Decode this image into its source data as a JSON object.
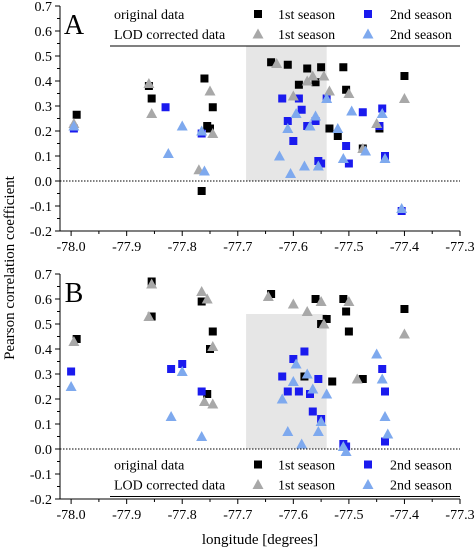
{
  "figure": {
    "ylabel": "Pearson correlation coefficient",
    "xlabel": "longitude [degrees]"
  },
  "colors": {
    "original_1st": "#000000",
    "original_2nd": "#1a1aee",
    "lod_1st": "#a8a8a8",
    "lod_2nd": "#7ea9ee",
    "shade": "#e6e6e6"
  },
  "chart_data": [
    {
      "type": "scatter",
      "panel_label": "A",
      "xlabel": "",
      "ylabel": "Pearson correlation coefficient",
      "xlim": [
        -78.02,
        -77.3
      ],
      "ylim": [
        -0.2,
        0.7
      ],
      "x_ticks": [
        -78.0,
        -77.9,
        -77.8,
        -77.7,
        -77.6,
        -77.5,
        -77.4,
        -77.3
      ],
      "x_tick_labels": [
        "-78.0",
        "-77.9",
        "-77.8",
        "-77.7",
        "-77.6",
        "-77.5",
        "-77.4",
        "-77.3"
      ],
      "y_ticks": [
        -0.2,
        -0.1,
        0.0,
        0.1,
        0.2,
        0.3,
        0.4,
        0.5,
        0.6,
        0.7
      ],
      "y_tick_labels": [
        "-0.2",
        "-0.1",
        "0.0",
        "0.1",
        "0.2",
        "0.3",
        "0.4",
        "0.5",
        "0.6",
        "0.7"
      ],
      "shaded_x_range": [
        -77.685,
        -77.54
      ],
      "reference_line_y": 0.0,
      "legend": {
        "position": "top",
        "row1_label": "original data",
        "row2_label": "LOD corrected data",
        "season1": "1st season",
        "season2": "2nd season"
      },
      "series": [
        {
          "name": "original data 1st season",
          "marker": "square",
          "color": "#000000",
          "x": [
            -77.99,
            -77.86,
            -77.855,
            -77.76,
            -77.75,
            -77.745,
            -77.755,
            -77.765,
            -77.64,
            -77.61,
            -77.59,
            -77.575,
            -77.56,
            -77.55,
            -77.535,
            -77.52,
            -77.51,
            -77.505,
            -77.475,
            -77.445,
            -77.4
          ],
          "y": [
            0.265,
            0.38,
            0.33,
            0.41,
            0.21,
            0.295,
            0.22,
            -0.04,
            0.475,
            0.465,
            0.385,
            0.45,
            0.395,
            0.455,
            0.21,
            0.18,
            0.455,
            0.365,
            0.13,
            0.21,
            0.42
          ]
        },
        {
          "name": "original data 2nd season",
          "marker": "square",
          "color": "#1a1aee",
          "x": [
            -77.995,
            -77.83,
            -77.765,
            -77.62,
            -77.61,
            -77.6,
            -77.59,
            -77.585,
            -77.575,
            -77.56,
            -77.555,
            -77.55,
            -77.54,
            -77.505,
            -77.5,
            -77.475,
            -77.445,
            -77.44,
            -77.435,
            -77.405
          ],
          "y": [
            0.21,
            0.295,
            0.19,
            0.33,
            0.24,
            0.16,
            0.33,
            0.285,
            0.22,
            0.24,
            0.08,
            0.07,
            0.33,
            0.14,
            0.07,
            0.275,
            0.22,
            0.29,
            0.1,
            -0.12
          ]
        },
        {
          "name": "LOD corrected data 1st season",
          "marker": "triangle",
          "color": "#a8a8a8",
          "x": [
            -77.995,
            -77.86,
            -77.855,
            -77.77,
            -77.745,
            -77.75,
            -77.63,
            -77.6,
            -77.575,
            -77.565,
            -77.545,
            -77.535,
            -77.5,
            -77.475,
            -77.45,
            -77.4
          ],
          "y": [
            0.23,
            0.39,
            0.27,
            0.045,
            0.19,
            0.36,
            0.47,
            0.34,
            0.4,
            0.42,
            0.42,
            0.36,
            0.35,
            0.13,
            0.23,
            0.33
          ]
        },
        {
          "name": "LOD corrected data 2nd season",
          "marker": "triangle",
          "color": "#7ea9ee",
          "x": [
            -77.995,
            -77.825,
            -77.8,
            -77.765,
            -77.76,
            -77.625,
            -77.61,
            -77.605,
            -77.595,
            -77.58,
            -77.57,
            -77.56,
            -77.555,
            -77.54,
            -77.52,
            -77.51,
            -77.495,
            -77.47,
            -77.44,
            -77.435,
            -77.405
          ],
          "y": [
            0.22,
            0.11,
            0.22,
            0.2,
            0.04,
            0.1,
            0.21,
            0.03,
            0.27,
            0.06,
            0.22,
            0.26,
            0.06,
            0.33,
            0.21,
            0.09,
            0.28,
            0.12,
            0.27,
            0.09,
            -0.11
          ]
        }
      ]
    },
    {
      "type": "scatter",
      "panel_label": "B",
      "xlabel": "longitude [degrees]",
      "ylabel": "Pearson correlation coefficient",
      "xlim": [
        -78.02,
        -77.3
      ],
      "ylim": [
        -0.2,
        0.7
      ],
      "x_ticks": [
        -78.0,
        -77.9,
        -77.8,
        -77.7,
        -77.6,
        -77.5,
        -77.4,
        -77.3
      ],
      "x_tick_labels": [
        "-78.0",
        "-77.9",
        "-77.8",
        "-77.7",
        "-77.6",
        "-77.5",
        "-77.4",
        "-77.3"
      ],
      "y_ticks": [
        -0.2,
        -0.1,
        0.0,
        0.1,
        0.2,
        0.3,
        0.4,
        0.5,
        0.6,
        0.7
      ],
      "y_tick_labels": [
        "-0.2",
        "-0.1",
        "0.0",
        "0.1",
        "0.2",
        "0.3",
        "0.4",
        "0.5",
        "0.6",
        "0.7"
      ],
      "shaded_x_range": [
        -77.685,
        -77.54
      ],
      "reference_line_y": 0.0,
      "legend": {
        "position": "bottom",
        "row1_label": "original data",
        "row2_label": "LOD corrected data",
        "season1": "1st season",
        "season2": "2nd season"
      },
      "series": [
        {
          "name": "original data 1st season",
          "marker": "square",
          "color": "#000000",
          "x": [
            -77.99,
            -77.855,
            -77.855,
            -77.765,
            -77.75,
            -77.745,
            -77.755,
            -77.64,
            -77.58,
            -77.56,
            -77.55,
            -77.54,
            -77.53,
            -77.51,
            -77.505,
            -77.5,
            -77.475,
            -77.4
          ],
          "y": [
            0.44,
            0.53,
            0.67,
            0.59,
            0.4,
            0.47,
            0.22,
            0.62,
            0.29,
            0.6,
            0.5,
            0.52,
            0.27,
            0.6,
            0.55,
            0.47,
            0.28,
            0.56
          ]
        },
        {
          "name": "original data 2nd season",
          "marker": "square",
          "color": "#1a1aee",
          "x": [
            -78.0,
            -77.82,
            -77.8,
            -77.765,
            -77.62,
            -77.61,
            -77.6,
            -77.59,
            -77.58,
            -77.57,
            -77.565,
            -77.555,
            -77.55,
            -77.51,
            -77.505,
            -77.44,
            -77.435,
            -77.435
          ],
          "y": [
            0.31,
            0.32,
            0.34,
            0.23,
            0.29,
            0.23,
            0.36,
            0.23,
            0.39,
            0.22,
            0.15,
            0.28,
            0.12,
            0.02,
            0.01,
            0.32,
            0.23,
            0.03
          ]
        },
        {
          "name": "LOD corrected data 1st season",
          "marker": "triangle",
          "color": "#a8a8a8",
          "x": [
            -77.995,
            -77.86,
            -77.855,
            -77.765,
            -77.755,
            -77.745,
            -77.76,
            -77.745,
            -77.645,
            -77.6,
            -77.575,
            -77.55,
            -77.545,
            -77.5,
            -77.485,
            -77.4
          ],
          "y": [
            0.43,
            0.53,
            0.66,
            0.63,
            0.6,
            0.41,
            0.19,
            0.18,
            0.61,
            0.58,
            0.55,
            0.59,
            0.5,
            0.59,
            0.28,
            0.46
          ]
        },
        {
          "name": "LOD corrected data 2nd season",
          "marker": "triangle",
          "color": "#7ea9ee",
          "x": [
            -78.0,
            -77.82,
            -77.8,
            -77.765,
            -77.62,
            -77.61,
            -77.6,
            -77.595,
            -77.585,
            -77.575,
            -77.565,
            -77.555,
            -77.55,
            -77.54,
            -77.51,
            -77.505,
            -77.45,
            -77.44,
            -77.435,
            -77.43
          ],
          "y": [
            0.25,
            0.13,
            0.31,
            0.05,
            0.2,
            0.07,
            0.27,
            0.34,
            0.02,
            0.3,
            0.24,
            0.07,
            0.11,
            0.22,
            0.01,
            -0.01,
            0.38,
            0.28,
            0.13,
            0.06
          ]
        }
      ]
    }
  ]
}
